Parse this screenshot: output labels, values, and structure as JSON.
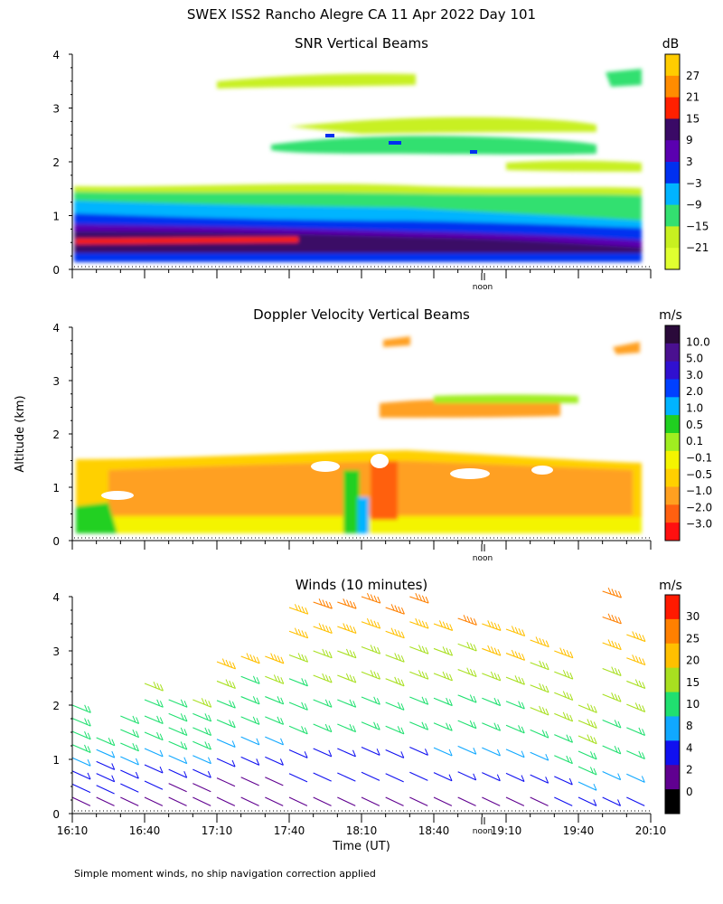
{
  "figure": {
    "title": "SWEX ISS2 Rancho Alegre CA  11 Apr 2022 Day 101",
    "ylabel": "Altitude (km)",
    "xlabel": "Time (UT)",
    "footnote": "Simple moment winds, no ship navigation correction applied"
  },
  "chart_data": [
    {
      "type": "heatmap",
      "title": "SNR Vertical Beams",
      "unit": "dB",
      "ylim": [
        0,
        4
      ],
      "yticks": [
        "0",
        "1",
        "2",
        "3",
        "4"
      ],
      "noon_label": "noon",
      "colorbar": {
        "labels": [
          "27",
          "21",
          "15",
          "9",
          "3",
          "−3",
          "−9",
          "−15",
          "−21"
        ],
        "colors": [
          "#ffcc00",
          "#ff8c00",
          "#ff2000",
          "#3a0a66",
          "#5a00b0",
          "#0030f0",
          "#00b4ff",
          "#33e070",
          "#c8f020",
          "#e0ff30"
        ]
      },
      "profile": [
        {
          "alt_range": [
            0.1,
            0.5
          ],
          "dominant": "3",
          "note": "dark purple/blue band with red streak near 0.5 km"
        },
        {
          "alt_range": [
            0.5,
            1.0
          ],
          "dominant": "-3",
          "note": "blue layer, thinning later in day"
        },
        {
          "alt_range": [
            1.0,
            1.6
          ],
          "dominant": "-9",
          "note": "cyan to green edge"
        },
        {
          "alt_range": [
            1.6,
            4.0
          ],
          "dominant": "-15",
          "note": "patchy green/yellow layers near 2.3, 2.7, 3.5 km"
        }
      ]
    },
    {
      "type": "heatmap",
      "title": "Doppler Velocity Vertical Beams",
      "unit": "m/s",
      "ylim": [
        0,
        4
      ],
      "yticks": [
        "0",
        "1",
        "2",
        "3",
        "4"
      ],
      "noon_label": "noon",
      "colorbar": {
        "labels": [
          "10.0",
          "5.0",
          "3.0",
          "2.0",
          "1.0",
          "0.5",
          "0.1",
          "−0.1",
          "−0.5",
          "−1.0",
          "−2.0",
          "−3.0"
        ],
        "colors": [
          "#2a0a3a",
          "#4a1090",
          "#3010d0",
          "#0040ff",
          "#00b4ff",
          "#20d020",
          "#a0ee20",
          "#f4f400",
          "#ffd000",
          "#ffa020",
          "#ff6010",
          "#ff1010"
        ]
      },
      "profile": [
        {
          "alt_range": [
            0.1,
            0.3
          ],
          "dominant": "-0.1",
          "note": "yellow near-surface layer"
        },
        {
          "alt_range": [
            0.3,
            1.6
          ],
          "dominant": "-0.5",
          "note": "orange downward motion with green/blue updraft patches"
        },
        {
          "alt_range": [
            1.6,
            4.0
          ],
          "dominant": "0.1",
          "note": "scattered yellow/green/orange pixels"
        }
      ]
    },
    {
      "type": "wind-barbs",
      "title": "Winds (10 minutes)",
      "unit": "m/s",
      "ylim": [
        0,
        4
      ],
      "yticks": [
        "0",
        "1",
        "2",
        "3",
        "4"
      ],
      "noon_label": "noon",
      "colorbar": {
        "labels": [
          "30",
          "25",
          "20",
          "15",
          "10",
          "8",
          "4",
          "2",
          "0"
        ],
        "colors": [
          "#ff1a00",
          "#ff8000",
          "#ffc000",
          "#a8e020",
          "#20e070",
          "#10a8ff",
          "#1010f0",
          "#600090",
          "#000000"
        ]
      },
      "x_time_labels": [
        "16:10",
        "16:40",
        "17:10",
        "17:40",
        "18:10",
        "18:40",
        "19:10",
        "19:40",
        "20:10"
      ],
      "profiles": [
        {
          "time": "16:10",
          "top_km": 2.0,
          "speeds": [
            3,
            4,
            6,
            9,
            11,
            12,
            13,
            14
          ]
        },
        {
          "time": "16:20",
          "top_km": 1.4,
          "speeds": [
            2,
            4,
            5,
            7,
            9,
            10
          ]
        },
        {
          "time": "16:30",
          "top_km": 1.8,
          "speeds": [
            3,
            4,
            6,
            8,
            10,
            12,
            13
          ]
        },
        {
          "time": "16:40",
          "top_km": 2.4,
          "speeds": [
            2,
            4,
            6,
            9,
            11,
            13,
            14,
            15
          ]
        },
        {
          "time": "16:50",
          "top_km": 2.1,
          "speeds": [
            2,
            3,
            5,
            8,
            10,
            12,
            13,
            14
          ]
        },
        {
          "time": "17:00",
          "top_km": 2.1,
          "speeds": [
            2,
            3,
            5,
            8,
            11,
            13,
            14,
            15
          ]
        },
        {
          "time": "17:10",
          "top_km": 2.8,
          "speeds": [
            2,
            3,
            6,
            9,
            11,
            13,
            15,
            20
          ]
        },
        {
          "time": "17:20",
          "top_km": 2.9,
          "speeds": [
            2,
            3,
            6,
            9,
            11,
            13,
            14,
            21
          ]
        },
        {
          "time": "17:30",
          "top_km": 2.9,
          "speeds": [
            2,
            3,
            6,
            9,
            12,
            13,
            15,
            21
          ]
        },
        {
          "time": "17:40",
          "top_km": 3.8,
          "speeds": [
            2,
            4,
            7,
            10,
            12,
            14,
            17,
            22,
            24
          ]
        },
        {
          "time": "17:50",
          "top_km": 3.9,
          "speeds": [
            2,
            4,
            7,
            10,
            12,
            15,
            18,
            22,
            25
          ]
        },
        {
          "time": "18:00",
          "top_km": 3.9,
          "speeds": [
            2,
            4,
            7,
            10,
            13,
            15,
            19,
            23,
            26
          ]
        },
        {
          "time": "18:10",
          "top_km": 4.0,
          "speeds": [
            2,
            4,
            7,
            10,
            13,
            16,
            19,
            23,
            26
          ]
        },
        {
          "time": "18:20",
          "top_km": 3.8,
          "speeds": [
            2,
            4,
            7,
            10,
            13,
            16,
            19,
            23,
            27
          ]
        },
        {
          "time": "18:30",
          "top_km": 4.0,
          "speeds": [
            2,
            4,
            7,
            11,
            13,
            16,
            19,
            24,
            28
          ]
        },
        {
          "time": "18:40",
          "top_km": 3.5,
          "speeds": [
            3,
            5,
            8,
            11,
            13,
            16,
            19,
            24
          ]
        },
        {
          "time": "18:50",
          "top_km": 3.6,
          "speeds": [
            3,
            5,
            8,
            11,
            14,
            16,
            19,
            25
          ]
        },
        {
          "time": "19:00",
          "top_km": 3.5,
          "speeds": [
            3,
            5,
            8,
            11,
            14,
            17,
            20,
            24
          ]
        },
        {
          "time": "19:10",
          "top_km": 3.4,
          "speeds": [
            3,
            6,
            9,
            12,
            14,
            17,
            20,
            23
          ]
        },
        {
          "time": "19:20",
          "top_km": 3.2,
          "speeds": [
            3,
            6,
            9,
            12,
            15,
            17,
            19,
            22
          ]
        },
        {
          "time": "19:30",
          "top_km": 3.0,
          "speeds": [
            4,
            7,
            10,
            12,
            15,
            17,
            19,
            21
          ]
        },
        {
          "time": "19:40",
          "top_km": 2.0,
          "speeds": [
            5,
            8,
            10,
            13,
            15,
            16,
            17
          ]
        },
        {
          "time": "19:50",
          "top_km": 4.1,
          "speeds": [
            5,
            8,
            11,
            13,
            15,
            17,
            22,
            26,
            28
          ]
        },
        {
          "time": "20:00",
          "top_km": 3.3,
          "speeds": [
            4,
            8,
            11,
            13,
            15,
            17,
            20,
            22
          ]
        }
      ]
    }
  ]
}
